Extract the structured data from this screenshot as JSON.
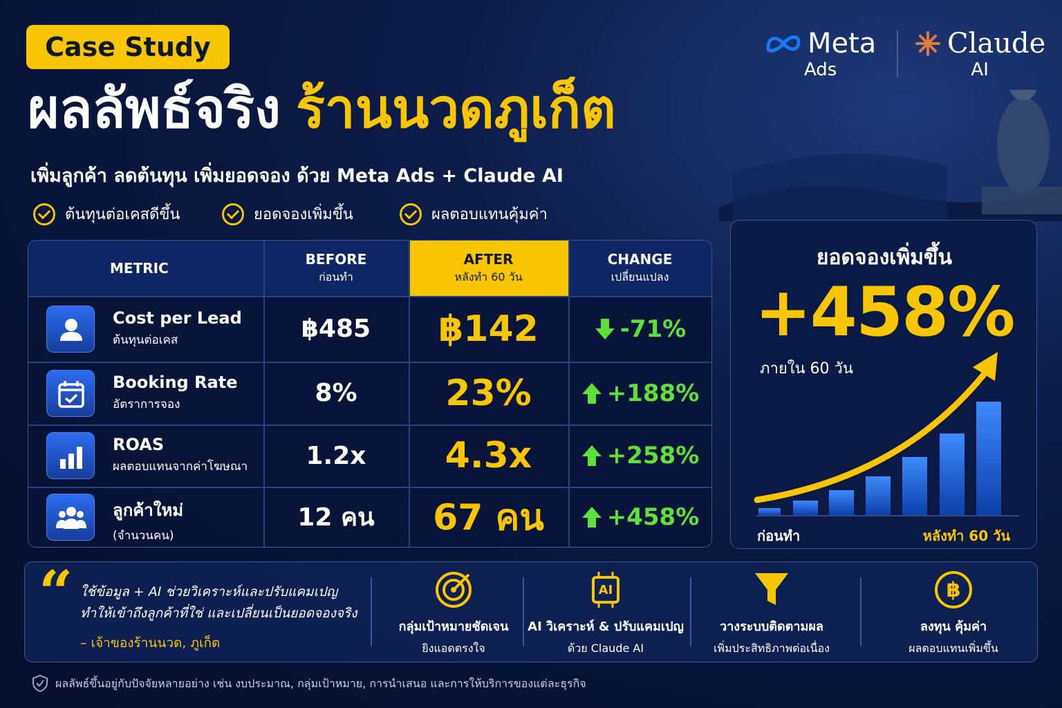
{
  "badge": "Case Study",
  "brands": {
    "meta": "Meta",
    "meta_sub": "Ads",
    "claude": "Claude",
    "claude_sub": "AI"
  },
  "title": {
    "main": "ผลลัพธ์จริง",
    "highlight": "ร้านนวดภูเก็ต"
  },
  "subtitle": "เพิ่มลูกค้า ลดต้นทุน เพิ่มยอดจอง ด้วย Meta Ads + Claude AI",
  "checks": [
    "ต้นทุนต่อเคสดีขึ้น",
    "ยอดจองเพิ่มขึ้น",
    "ผลตอบแทนคุ้มค่า"
  ],
  "table": {
    "header": [
      {
        "label": "METRIC"
      },
      {
        "label": "BEFORE",
        "sub": "ก่อนทำ"
      },
      {
        "label": "AFTER",
        "sub": "หลังทำ 60 วัน"
      },
      {
        "label": "CHANGE",
        "sub": "เปลี่ยนแปลง"
      }
    ],
    "rows": [
      {
        "name": "Cost per Lead",
        "sub": "ต้นทุนต่อเคส",
        "before": "฿485",
        "after": "฿142",
        "change": "-71%",
        "direction": "down"
      },
      {
        "name": "Booking Rate",
        "sub": "อัตราการจอง",
        "before": "8%",
        "after": "23%",
        "change": "+188%",
        "direction": "up"
      },
      {
        "name": "ROAS",
        "sub": "ผลตอบแทนจากค่าโฆษณา",
        "before": "1.2x",
        "after": "4.3x",
        "change": "+258%",
        "direction": "up"
      },
      {
        "name": "ลูกค้าใหม่",
        "sub": "(จำนวนคน)",
        "before": "12 คน",
        "after": "67 คน",
        "change": "+458%",
        "direction": "up"
      }
    ]
  },
  "highlight_panel": {
    "title": "ยอดจองเพิ่มขึ้น",
    "value": "+458%",
    "note": "ภายใน 60 วัน",
    "axis_start": "ก่อนทำ",
    "axis_end": "หลังทำ 60 วัน"
  },
  "quote": {
    "lines": [
      "ใช้ข้อมูล + AI ช่วยวิเคราะห์และปรับแคมเปญ",
      "ทำให้เข้าถึงลูกค้าที่ใช่ และเปลี่ยนเป็นยอดจองจริง"
    ],
    "author": "– เจ้าของร้านนวด, ภูเก็ต"
  },
  "features": [
    {
      "title": "กลุ่มเป้าหมายชัดเจน",
      "sub": "ยิงแอดตรงใจ"
    },
    {
      "title": "AI วิเคราะห์ & ปรับแคมเปญ",
      "sub": "ด้วย Claude AI",
      "icon_label": "AI"
    },
    {
      "title": "วางระบบติดตามผล",
      "sub": "เพิ่มประสิทธิภาพต่อเนื่อง"
    },
    {
      "title": "ลงทุน คุ้มค่า",
      "sub": "ผลตอบแทนเพิ่มขึ้น",
      "icon_label": "฿"
    }
  ],
  "disclaimer": "ผลลัพธ์ขึ้นอยู่กับปัจจัยหลายอย่าง เช่น งบประมาณ, กลุ่มเป้าหมาย, การนำเสนอ และการให้บริการของแต่ละธุรกิจ"
}
